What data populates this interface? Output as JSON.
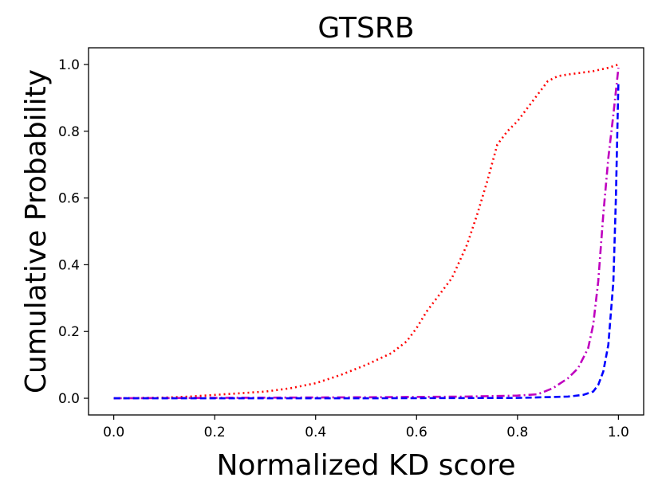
{
  "chart_data": {
    "type": "line",
    "title": "GTSRB",
    "xlabel": "Normalized KD score",
    "ylabel": "Cumulative Probability",
    "xlim": [
      -0.05,
      1.05
    ],
    "ylim": [
      -0.05,
      1.05
    ],
    "xticks": [
      0.0,
      0.2,
      0.4,
      0.6,
      0.8,
      1.0
    ],
    "yticks": [
      0.0,
      0.2,
      0.4,
      0.6,
      0.8,
      1.0
    ],
    "xtick_labels": [
      "0.0",
      "0.2",
      "0.4",
      "0.6",
      "0.8",
      "1.0"
    ],
    "ytick_labels": [
      "0.0",
      "0.2",
      "0.4",
      "0.6",
      "0.8",
      "1.0"
    ],
    "grid": false,
    "series": [
      {
        "name": "red-dotted",
        "color": "#ff0000",
        "style": "dotted",
        "x": [
          0.0,
          0.1,
          0.15,
          0.2,
          0.25,
          0.3,
          0.35,
          0.4,
          0.45,
          0.5,
          0.55,
          0.58,
          0.6,
          0.62,
          0.65,
          0.67,
          0.7,
          0.72,
          0.74,
          0.76,
          0.78,
          0.8,
          0.82,
          0.84,
          0.86,
          0.88,
          0.9,
          0.95,
          0.98,
          1.0
        ],
        "y": [
          0.0,
          0.002,
          0.005,
          0.01,
          0.015,
          0.02,
          0.03,
          0.045,
          0.07,
          0.1,
          0.135,
          0.17,
          0.21,
          0.26,
          0.32,
          0.36,
          0.46,
          0.55,
          0.65,
          0.76,
          0.8,
          0.83,
          0.87,
          0.91,
          0.95,
          0.965,
          0.97,
          0.98,
          0.99,
          1.0
        ]
      },
      {
        "name": "magenta-dashdot",
        "color": "#bf00bf",
        "style": "dashdot",
        "x": [
          0.0,
          0.5,
          0.7,
          0.8,
          0.84,
          0.87,
          0.9,
          0.92,
          0.94,
          0.95,
          0.96,
          0.97,
          0.98,
          0.99,
          1.0
        ],
        "y": [
          0.0,
          0.003,
          0.005,
          0.008,
          0.012,
          0.03,
          0.06,
          0.09,
          0.15,
          0.22,
          0.35,
          0.55,
          0.72,
          0.85,
          0.99
        ]
      },
      {
        "name": "blue-dashed",
        "color": "#0000ff",
        "style": "dashed",
        "x": [
          0.0,
          0.5,
          0.8,
          0.9,
          0.93,
          0.95,
          0.96,
          0.97,
          0.98,
          0.99,
          0.995,
          1.0
        ],
        "y": [
          0.0,
          0.0,
          0.001,
          0.005,
          0.01,
          0.02,
          0.04,
          0.08,
          0.16,
          0.35,
          0.6,
          0.95
        ]
      }
    ]
  }
}
